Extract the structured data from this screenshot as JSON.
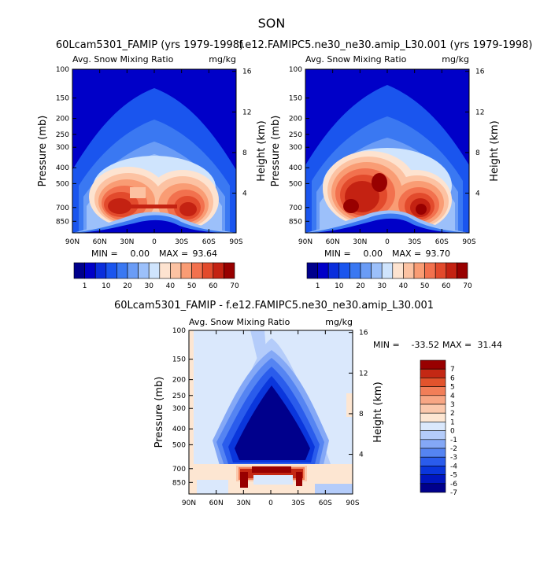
{
  "figure": {
    "season": "SON"
  },
  "colors": {
    "top_scale": [
      "#00008c",
      "#0000c8",
      "#0a2edc",
      "#1a55ee",
      "#3a78f2",
      "#6a9cf6",
      "#9cc0fa",
      "#cfe4fd",
      "#fde3d0",
      "#fcc2a2",
      "#f99c74",
      "#f2714e",
      "#e24a2c",
      "#c42212",
      "#980000"
    ],
    "diff_scale": [
      "#00008c",
      "#0016c0",
      "#0a36dc",
      "#2a5cec",
      "#5584f2",
      "#84a8f6",
      "#b4ccfa",
      "#dae8fc",
      "#fde6d2",
      "#fbc8ac",
      "#f8a684",
      "#f27e58",
      "#e2532c",
      "#c42814",
      "#980000"
    ]
  },
  "chart_data": [
    {
      "type": "heatmap",
      "id": "panel-1",
      "title": "60Lcam5301_FAMIP (yrs 1979-1998)",
      "left_label": "Avg. Snow Mixing Ratio",
      "right_label": "mg/kg",
      "xlabel": "",
      "ylabel": "Pressure (mb)",
      "ylabel_right": "Height (km)",
      "x_ticks": [
        "90N",
        "60N",
        "30N",
        "0",
        "30S",
        "60S",
        "90S"
      ],
      "y_ticks": [
        "100",
        "150",
        "200",
        "250",
        "300",
        "400",
        "500",
        "700",
        "850"
      ],
      "height_ticks": [
        "16",
        "12",
        "8",
        "4"
      ],
      "ylim": [
        1000,
        100
      ],
      "min_label": "MIN =",
      "min": "0.00",
      "max_label": "MAX =",
      "max": "93.64",
      "colorbar_levels": [
        "1",
        "10",
        "20",
        "30",
        "40",
        "50",
        "60",
        "70"
      ]
    },
    {
      "type": "heatmap",
      "id": "panel-2",
      "title": "f.e12.FAMIPC5.ne30_ne30.amip_L30.001 (yrs 1979-1998)",
      "left_label": "Avg. Snow Mixing Ratio",
      "right_label": "mg/kg",
      "xlabel": "",
      "ylabel": "Pressure (mb)",
      "ylabel_right": "Height (km)",
      "x_ticks": [
        "90N",
        "60N",
        "30N",
        "0",
        "30S",
        "60S",
        "90S"
      ],
      "y_ticks": [
        "100",
        "150",
        "200",
        "250",
        "300",
        "400",
        "500",
        "700",
        "850"
      ],
      "height_ticks": [
        "16",
        "12",
        "8",
        "4"
      ],
      "ylim": [
        1000,
        100
      ],
      "min_label": "MIN =",
      "min": "0.00",
      "max_label": "MAX =",
      "max": "93.70",
      "colorbar_levels": [
        "1",
        "10",
        "20",
        "30",
        "40",
        "50",
        "60",
        "70"
      ]
    },
    {
      "type": "heatmap",
      "id": "panel-3",
      "title": "60Lcam5301_FAMIP - f.e12.FAMIPC5.ne30_ne30.amip_L30.001",
      "left_label": "Avg. Snow Mixing Ratio",
      "right_label": "mg/kg",
      "xlabel": "",
      "ylabel": "Pressure (mb)",
      "ylabel_right": "Height (km)",
      "x_ticks": [
        "90N",
        "60N",
        "30N",
        "0",
        "30S",
        "60S",
        "90S"
      ],
      "y_ticks": [
        "100",
        "150",
        "200",
        "250",
        "300",
        "400",
        "500",
        "700",
        "850"
      ],
      "height_ticks": [
        "16",
        "12",
        "8",
        "4"
      ],
      "ylim": [
        1000,
        100
      ],
      "min_label": "MIN =",
      "min": "-33.52",
      "max_label": "MAX =",
      "max": "31.44",
      "colorbar_levels": [
        "7",
        "6",
        "5",
        "4",
        "3",
        "2",
        "1",
        "0",
        "-1",
        "-2",
        "-3",
        "-4",
        "-5",
        "-6",
        "-7"
      ]
    }
  ]
}
